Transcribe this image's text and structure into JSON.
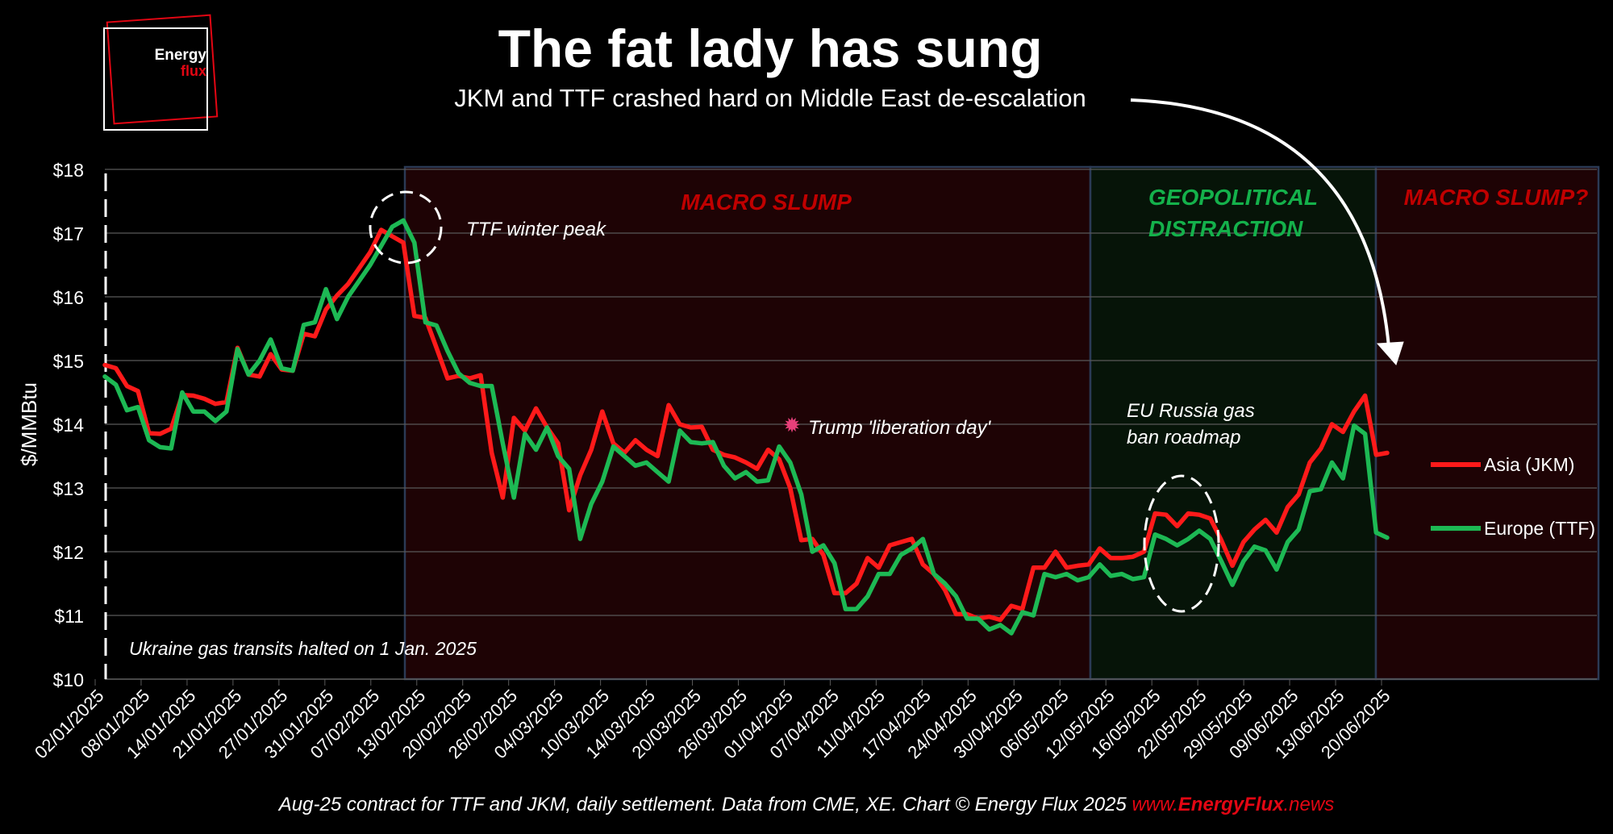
{
  "header": {
    "logo_line1": "Energy",
    "logo_line2": "flux",
    "title": "The fat lady has sung",
    "subtitle": "JKM and TTF crashed hard on Middle East de-escalation"
  },
  "footer": {
    "text": "Aug-25 contract for TTF and JKM, daily settlement. Data from CME, XE. Chart © Energy Flux 2025 ",
    "link_prefix": "www.",
    "link_bold": "EnergyFlux",
    "link_suffix": ".news"
  },
  "colors": {
    "background": "#000000",
    "jkm": "#ff1a1a",
    "ttf": "#1db954",
    "macro_region": "#1e0305",
    "geo_region": "#061408",
    "region_border": "#2b3a55",
    "macro_label": "#c00000",
    "geo_label": "#14b14b",
    "grid": "#595959"
  },
  "chart_data": {
    "type": "line",
    "title": "The fat lady has sung",
    "subtitle": "JKM and TTF crashed hard on Middle East de-escalation",
    "ylabel": "$/MMBtu",
    "ylim": [
      10,
      18
    ],
    "y_ticks": [
      "$10",
      "$11",
      "$12",
      "$13",
      "$14",
      "$15",
      "$16",
      "$17",
      "$18"
    ],
    "grid": true,
    "legend_position": "right",
    "x_tick_labels": [
      "02/01/2025",
      "08/01/2025",
      "14/01/2025",
      "21/01/2025",
      "27/01/2025",
      "31/01/2025",
      "07/02/2025",
      "13/02/2025",
      "20/02/2025",
      "26/02/2025",
      "04/03/2025",
      "10/03/2025",
      "14/03/2025",
      "20/03/2025",
      "26/03/2025",
      "01/04/2025",
      "07/04/2025",
      "11/04/2025",
      "17/04/2025",
      "24/04/2025",
      "30/04/2025",
      "06/05/2025",
      "12/05/2025",
      "16/05/2025",
      "22/05/2025",
      "29/05/2025",
      "09/06/2025",
      "13/06/2025",
      "20/06/2025"
    ],
    "series": [
      {
        "name": "Asia (JKM)",
        "color": "#ff1a1a",
        "values": [
          14.93,
          14.88,
          14.6,
          14.52,
          13.86,
          13.85,
          13.93,
          14.46,
          14.45,
          14.4,
          14.32,
          14.35,
          15.2,
          14.78,
          14.75,
          15.1,
          14.86,
          14.84,
          15.42,
          15.38,
          15.8,
          16.02,
          16.2,
          16.45,
          16.7,
          17.05,
          16.95,
          16.85,
          15.7,
          15.67,
          15.2,
          14.72,
          14.76,
          14.72,
          14.77,
          13.55,
          12.85,
          14.1,
          13.9,
          14.25,
          13.95,
          13.7,
          12.65,
          13.2,
          13.6,
          14.2,
          13.7,
          13.55,
          13.75,
          13.6,
          13.5,
          14.3,
          14.0,
          13.95,
          13.96,
          13.6,
          13.52,
          13.48,
          13.4,
          13.3,
          13.6,
          13.45,
          13.0,
          12.18,
          12.2,
          11.95,
          11.35,
          11.35,
          11.5,
          11.9,
          11.75,
          12.1,
          12.15,
          12.2,
          11.8,
          11.65,
          11.4,
          11.02,
          11.02,
          10.95,
          10.98,
          10.93,
          11.15,
          11.1,
          11.75,
          11.75,
          12.0,
          11.75,
          11.78,
          11.8,
          12.05,
          11.9,
          11.9,
          11.92,
          12.0,
          12.6,
          12.58,
          12.4,
          12.6,
          12.58,
          12.52,
          12.18,
          11.78,
          12.15,
          12.35,
          12.5,
          12.3,
          12.7,
          12.9,
          13.4,
          13.62,
          14.0,
          13.88,
          14.2,
          14.45,
          13.52,
          13.55
        ]
      },
      {
        "name": "Europe (TTF)",
        "color": "#1db954",
        "values": [
          14.75,
          14.62,
          14.22,
          14.27,
          13.75,
          13.64,
          13.62,
          14.5,
          14.2,
          14.2,
          14.05,
          14.2,
          15.18,
          14.78,
          15.0,
          15.33,
          14.88,
          14.84,
          15.56,
          15.6,
          16.12,
          15.65,
          16.0,
          16.25,
          16.5,
          16.8,
          17.1,
          17.2,
          16.85,
          15.6,
          15.55,
          15.15,
          14.8,
          14.65,
          14.6,
          14.6,
          13.7,
          12.85,
          13.85,
          13.6,
          13.95,
          13.5,
          13.3,
          12.2,
          12.75,
          13.1,
          13.65,
          13.5,
          13.35,
          13.4,
          13.25,
          13.1,
          13.9,
          13.72,
          13.7,
          13.72,
          13.35,
          13.15,
          13.25,
          13.1,
          13.12,
          13.65,
          13.4,
          12.9,
          12.0,
          12.1,
          11.82,
          11.1,
          11.1,
          11.3,
          11.65,
          11.65,
          11.95,
          12.05,
          12.2,
          11.65,
          11.5,
          11.3,
          10.95,
          10.95,
          10.78,
          10.85,
          10.72,
          11.05,
          11.0,
          11.65,
          11.6,
          11.65,
          11.55,
          11.6,
          11.8,
          11.62,
          11.65,
          11.57,
          11.6,
          12.27,
          12.2,
          12.1,
          12.2,
          12.33,
          12.2,
          11.85,
          11.48,
          11.85,
          12.08,
          12.02,
          11.72,
          12.15,
          12.35,
          12.95,
          12.98,
          13.4,
          13.15,
          13.98,
          13.85,
          12.3,
          12.22
        ]
      }
    ],
    "regions": [
      {
        "label": "MACRO SLUMP",
        "kind": "macro"
      },
      {
        "label": "GEOPOLITICAL\nDISTRACTION",
        "kind": "geo"
      },
      {
        "label": "MACRO SLUMP?",
        "kind": "macro"
      }
    ],
    "annotations": {
      "ttf_peak": "TTF winter peak",
      "liberation_day": "Trump 'liberation day'",
      "eu_russia": "EU Russia gas\nban roadmap",
      "ukraine": "Ukraine gas transits halted on 1 Jan. 2025"
    }
  }
}
